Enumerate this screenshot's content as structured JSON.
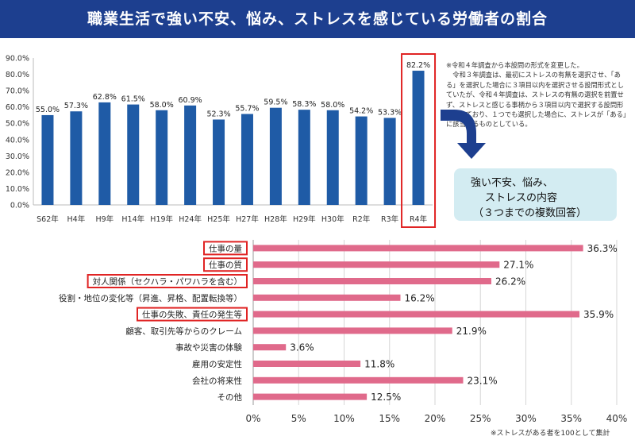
{
  "header": {
    "title": "職業生活で強い不安、悩み、ストレスを感じている労働者の割合"
  },
  "notes": [
    "※令和４年調査から本設問の形式を変更した。",
    "　令和３年調査は、最初にストレスの有無を選択させ、「あ",
    "る」を選択した場合に３項目以内を選択させる設問形式とし",
    "ていたが、令和４年調査は、ストレスの有無の選択を前置せ",
    "ず、ストレスと感じる事柄から３項目以内で選択する設問形",
    "式としており、１つでも選択した場合に、ストレスが「ある」",
    "に該当するものとしている。"
  ],
  "callout": {
    "lines": [
      "強い不安、悩み、",
      "ストレスの内容",
      "（３つまでの複数回答）"
    ]
  },
  "footnote": "※ストレスがある者を100として集計",
  "colors": {
    "header": "#1d3f8f",
    "bar_top": "#1f5ba6",
    "bar_bottom": "#e06a8b",
    "highlight": "#e02424",
    "arrow": "#1d3f8f",
    "callout_bg": "#d3ecf2"
  },
  "chart_data": [
    {
      "type": "bar",
      "categories": [
        "S62年",
        "H4年",
        "H9年",
        "H14年",
        "H19年",
        "H24年",
        "H25年",
        "H27年",
        "H28年",
        "H29年",
        "H30年",
        "R2年",
        "R3年",
        "R4年"
      ],
      "values": [
        55.0,
        57.3,
        62.8,
        61.5,
        58.0,
        60.9,
        52.3,
        55.7,
        59.5,
        58.3,
        58.0,
        54.2,
        53.3,
        82.2
      ],
      "value_labels": [
        "55.0%",
        "57.3%",
        "62.8%",
        "61.5%",
        "58.0%",
        "60.9%",
        "52.3%",
        "55.7%",
        "59.5%",
        "58.3%",
        "58.0%",
        "54.2%",
        "53.3%",
        "82.2%"
      ],
      "yticks": [
        "0.0%",
        "10.0%",
        "20.0%",
        "30.0%",
        "40.0%",
        "50.0%",
        "60.0%",
        "70.0%",
        "80.0%",
        "90.0%"
      ],
      "ylim": [
        0,
        90
      ],
      "highlighted": [
        "R4年"
      ],
      "grid": false
    },
    {
      "type": "bar",
      "orientation": "horizontal",
      "categories": [
        "仕事の量",
        "仕事の質",
        "対人関係（セクハラ・パワハラを含む）",
        "役割・地位の変化等（昇進、昇格、配置転換等）",
        "仕事の失敗、責任の発生等",
        "顧客、取引先等からのクレーム",
        "事故や災害の体験",
        "雇用の安定性",
        "会社の将来性",
        "その他"
      ],
      "values": [
        36.3,
        27.1,
        26.2,
        16.2,
        35.9,
        21.9,
        3.6,
        11.8,
        23.1,
        12.5
      ],
      "value_labels": [
        "36.3%",
        "27.1%",
        "26.2%",
        "16.2%",
        "35.9%",
        "21.9%",
        "3.6%",
        "11.8%",
        "23.1%",
        "12.5%"
      ],
      "xticks": [
        "0%",
        "5%",
        "10%",
        "15%",
        "20%",
        "25%",
        "30%",
        "35%",
        "40%"
      ],
      "xlim": [
        0,
        40
      ],
      "highlighted": [
        "仕事の量",
        "仕事の質",
        "対人関係（セクハラ・パワハラを含む）",
        "仕事の失敗、責任の発生等"
      ],
      "grid": true
    }
  ]
}
